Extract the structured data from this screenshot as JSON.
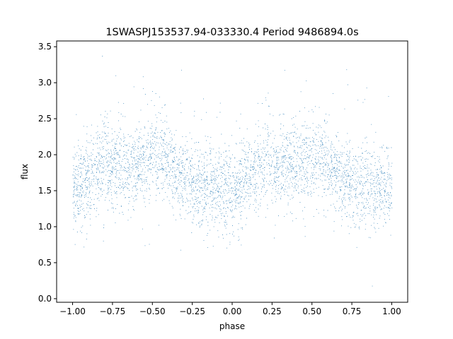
{
  "chart_data": {
    "type": "scatter",
    "title": "1SWASPJ153537.94-033330.4 Period 9486894.0s",
    "xlabel": "phase",
    "ylabel": "flux",
    "xlim": [
      -1.1,
      1.1
    ],
    "ylim": [
      -0.05,
      3.58
    ],
    "xticks": [
      -1.0,
      -0.75,
      -0.5,
      -0.25,
      0.0,
      0.25,
      0.5,
      0.75,
      1.0
    ],
    "xtick_labels": [
      "−1.00",
      "−0.75",
      "−0.50",
      "−0.25",
      "0.00",
      "0.25",
      "0.50",
      "0.75",
      "1.00"
    ],
    "yticks": [
      0.0,
      0.5,
      1.0,
      1.5,
      2.0,
      2.5,
      3.0,
      3.5
    ],
    "ytick_labels": [
      "0.0",
      "0.5",
      "1.0",
      "1.5",
      "2.0",
      "2.5",
      "3.0",
      "3.5"
    ],
    "grid": false,
    "marker_color": "#1f77b4",
    "series": [
      {
        "x": [
          -1.0,
          -0.9,
          -0.8,
          -0.7,
          -0.6,
          -0.5,
          -0.45,
          -0.4,
          -0.3,
          -0.2,
          -0.1,
          0.0,
          0.1,
          0.2,
          0.3,
          0.4,
          0.5,
          0.55,
          0.6,
          0.7,
          0.8,
          0.9,
          1.0
        ],
        "y": [
          1.5,
          1.65,
          1.9,
          1.85,
          1.85,
          1.95,
          2.0,
          1.85,
          1.65,
          1.55,
          1.55,
          1.5,
          1.65,
          1.9,
          1.85,
          1.85,
          1.95,
          2.0,
          1.85,
          1.65,
          1.55,
          1.55,
          1.5
        ],
        "spread": [
          0.3,
          0.28,
          0.32,
          0.3,
          0.28,
          0.3,
          0.3,
          0.28,
          0.27,
          0.28,
          0.28,
          0.3,
          0.28,
          0.32,
          0.3,
          0.28,
          0.3,
          0.3,
          0.28,
          0.27,
          0.28,
          0.28,
          0.3
        ]
      }
    ]
  }
}
